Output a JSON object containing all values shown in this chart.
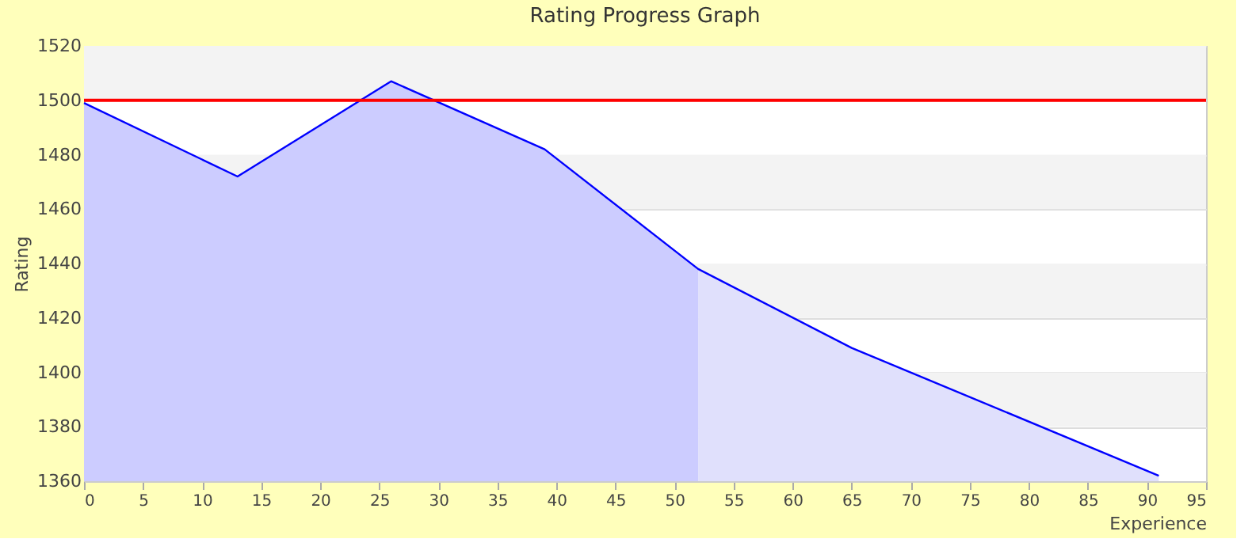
{
  "chart_data": {
    "type": "area",
    "title": "Rating Progress Graph",
    "xlabel": "Experience",
    "ylabel": "Rating",
    "series": [
      {
        "color": "#ccccff",
        "x": [
          0,
          13,
          26,
          39,
          52
        ],
        "values": [
          1499,
          1472,
          1507,
          1482,
          1438
        ]
      },
      {
        "color": "#e0e0fc",
        "x": [
          52,
          65,
          91
        ],
        "values": [
          1438,
          1409,
          1362
        ]
      },
      {
        "type": "line",
        "color": "#0000ff",
        "x": [
          0,
          13,
          26,
          39,
          52,
          65,
          91
        ],
        "values": [
          1499,
          1472,
          1507,
          1482,
          1438,
          1409,
          1362
        ]
      }
    ],
    "xlim": [
      0,
      95
    ],
    "xticks": [
      0,
      5,
      10,
      15,
      20,
      25,
      30,
      35,
      40,
      45,
      50,
      55,
      60,
      65,
      70,
      75,
      80,
      85,
      90,
      95
    ],
    "ylim": [
      1360,
      1520
    ],
    "yticks": [
      1360,
      1380,
      1400,
      1420,
      1440,
      1460,
      1480,
      1500,
      1520
    ],
    "bands": [
      {
        "axis": "y",
        "from": 1500,
        "to": 1520,
        "color": "#f3f3f3"
      },
      {
        "axis": "y",
        "from": 1460,
        "to": 1480,
        "color": "#f3f3f3"
      },
      {
        "axis": "y",
        "from": 1420,
        "to": 1440,
        "color": "#f3f3f3"
      },
      {
        "axis": "y",
        "from": 1380,
        "to": 1400,
        "color": "#f3f3f3"
      }
    ],
    "ref_lines": [
      {
        "axis": "y",
        "value": 1500,
        "color": "#ff0000"
      }
    ],
    "grid": "y"
  }
}
